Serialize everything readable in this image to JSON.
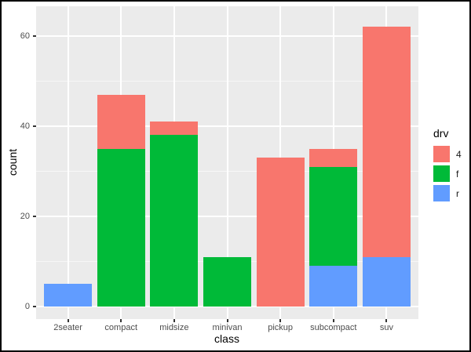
{
  "figure": {
    "background": "#FFFFFF",
    "border_color": "#000000"
  },
  "chart_data": {
    "type": "bar",
    "stacked": true,
    "title": "",
    "xlabel": "class",
    "ylabel": "count",
    "categories": [
      "2seater",
      "compact",
      "midsize",
      "minivan",
      "pickup",
      "subcompact",
      "suv"
    ],
    "series": [
      {
        "name": "4",
        "color": "#F8766D",
        "values": [
          0,
          12,
          3,
          0,
          33,
          4,
          51
        ]
      },
      {
        "name": "f",
        "color": "#00BA38",
        "values": [
          0,
          35,
          38,
          11,
          0,
          22,
          0
        ]
      },
      {
        "name": "r",
        "color": "#619CFF",
        "values": [
          5,
          0,
          0,
          0,
          0,
          9,
          11
        ]
      }
    ],
    "stack_order_bottom_to_top": [
      "r",
      "f",
      "4"
    ],
    "totals": [
      5,
      47,
      41,
      11,
      33,
      35,
      62
    ],
    "y_ticks": [
      0,
      20,
      40,
      60
    ],
    "y_minor_gridlines": [
      10,
      30,
      50
    ],
    "ylim": [
      -2.8,
      66.4
    ],
    "grid": "on",
    "panel_background": "#EBEBEB",
    "gridline_color": "#FFFFFF",
    "tick_label_color": "#4D4D4D",
    "legend": {
      "title": "drv",
      "position": "right",
      "entries": [
        {
          "label": "4",
          "color": "#F8766D"
        },
        {
          "label": "f",
          "color": "#00BA38"
        },
        {
          "label": "r",
          "color": "#619CFF"
        }
      ]
    }
  }
}
